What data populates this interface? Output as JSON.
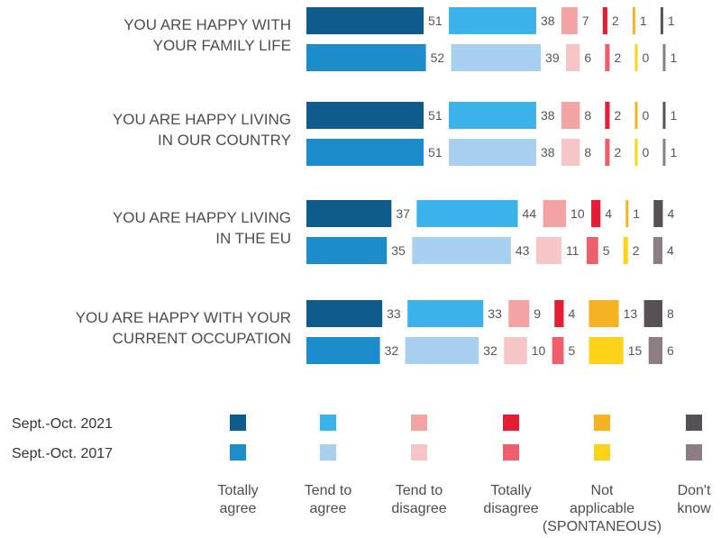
{
  "chart_data": {
    "type": "bar",
    "orientation": "horizontal-stacked",
    "categories": [
      [
        "YOU ARE HAPPY WITH",
        "YOUR FAMILY LIFE"
      ],
      [
        "YOU ARE HAPPY LIVING",
        "IN OUR COUNTRY"
      ],
      [
        "YOU ARE HAPPY LIVING",
        "IN THE EU"
      ],
      [
        "YOU ARE HAPPY WITH YOUR",
        "CURRENT OCCUPATION"
      ]
    ],
    "waves": [
      "Sept.-Oct. 2021",
      "Sept.-Oct. 2017"
    ],
    "answers": [
      {
        "label": [
          "Totally",
          "agree"
        ],
        "colors": [
          "#0e5b8c",
          "#1c8ccb"
        ]
      },
      {
        "label": [
          "Tend to",
          "agree"
        ],
        "colors": [
          "#3bb2ea",
          "#a7cfee"
        ]
      },
      {
        "label": [
          "Tend to",
          "disagree"
        ],
        "colors": [
          "#f4a3a3",
          "#f6c6c6"
        ]
      },
      {
        "label": [
          "Totally",
          "disagree"
        ],
        "colors": [
          "#e41d34",
          "#ef5f6b"
        ]
      },
      {
        "label": [
          "Not",
          "applicable",
          "(SPONTANEOUS)"
        ],
        "colors": [
          "#f5b324",
          "#fcd318"
        ]
      },
      {
        "label": [
          "Don't",
          "know"
        ],
        "colors": [
          "#575055",
          "#8c7d84"
        ]
      }
    ],
    "values": [
      [
        [
          51,
          38,
          7,
          2,
          1,
          1
        ],
        [
          52,
          39,
          6,
          2,
          0,
          1
        ]
      ],
      [
        [
          51,
          38,
          8,
          2,
          0,
          1
        ],
        [
          51,
          38,
          8,
          2,
          0,
          1
        ]
      ],
      [
        [
          37,
          44,
          10,
          4,
          1,
          4
        ],
        [
          35,
          43,
          11,
          5,
          2,
          4
        ]
      ],
      [
        [
          33,
          33,
          9,
          4,
          13,
          8
        ],
        [
          32,
          32,
          10,
          5,
          15,
          6
        ]
      ]
    ]
  }
}
